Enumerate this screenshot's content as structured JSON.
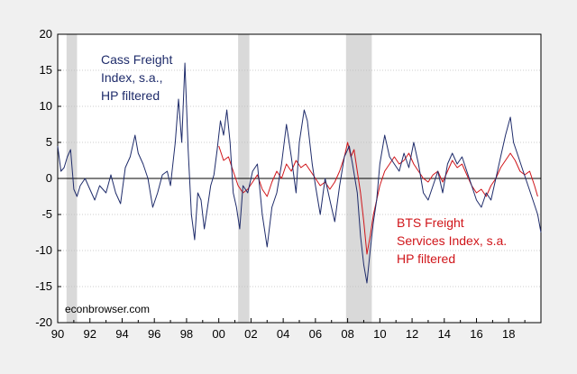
{
  "chart_data": {
    "type": "line",
    "title": "",
    "xlabel": "",
    "ylabel": "",
    "xlim": [
      1990,
      2020
    ],
    "ylim": [
      -20,
      20
    ],
    "grid": true,
    "x_ticks": [
      "90",
      "92",
      "94",
      "96",
      "98",
      "00",
      "02",
      "04",
      "06",
      "08",
      "10",
      "12",
      "14",
      "16",
      "18"
    ],
    "y_ticks": [
      "20",
      "15",
      "10",
      "5",
      "0",
      "-5",
      "-10",
      "-15",
      "-20"
    ],
    "recessions": [
      [
        1990.55,
        1991.2
      ],
      [
        2001.2,
        2001.9
      ],
      [
        2007.9,
        2009.5
      ]
    ],
    "colors": {
      "cass": "#1f2c6b",
      "bts": "#d0151a",
      "recession": "#d9d9d9",
      "background": "#f0f0f0",
      "plot": "#ffffff"
    },
    "annotations": {
      "cass_label": [
        "Cass Freight",
        "Index, s.a.,",
        "HP filtered"
      ],
      "bts_label": [
        "BTS Freight",
        "Services Index, s.a.",
        "HP filtered"
      ],
      "credit": "econbrowser.com"
    },
    "series": [
      {
        "key": "cass",
        "values": [
          [
            1990.0,
            4.5
          ],
          [
            1990.2,
            1.0
          ],
          [
            1990.4,
            1.5
          ],
          [
            1990.6,
            3.0
          ],
          [
            1990.8,
            4.0
          ],
          [
            1991.0,
            -1.5
          ],
          [
            1991.2,
            -2.5
          ],
          [
            1991.4,
            -1.0
          ],
          [
            1991.7,
            0.0
          ],
          [
            1992.0,
            -1.5
          ],
          [
            1992.3,
            -3.0
          ],
          [
            1992.6,
            -1.0
          ],
          [
            1993.0,
            -2.0
          ],
          [
            1993.3,
            0.5
          ],
          [
            1993.6,
            -2.0
          ],
          [
            1993.9,
            -3.5
          ],
          [
            1994.2,
            1.5
          ],
          [
            1994.5,
            3.0
          ],
          [
            1994.8,
            6.0
          ],
          [
            1995.0,
            3.5
          ],
          [
            1995.3,
            2.0
          ],
          [
            1995.6,
            0.0
          ],
          [
            1995.9,
            -4.0
          ],
          [
            1996.2,
            -2.0
          ],
          [
            1996.5,
            0.5
          ],
          [
            1996.8,
            1.0
          ],
          [
            1997.0,
            -1.0
          ],
          [
            1997.3,
            5.0
          ],
          [
            1997.5,
            11.0
          ],
          [
            1997.7,
            5.0
          ],
          [
            1997.9,
            16.0
          ],
          [
            1998.1,
            4.0
          ],
          [
            1998.3,
            -5.0
          ],
          [
            1998.5,
            -8.5
          ],
          [
            1998.7,
            -2.0
          ],
          [
            1998.9,
            -3.0
          ],
          [
            1999.1,
            -7.0
          ],
          [
            1999.3,
            -4.0
          ],
          [
            1999.5,
            -1.0
          ],
          [
            1999.7,
            0.5
          ],
          [
            1999.9,
            4.0
          ],
          [
            2000.1,
            8.0
          ],
          [
            2000.3,
            6.0
          ],
          [
            2000.5,
            9.5
          ],
          [
            2000.7,
            5.0
          ],
          [
            2000.9,
            -2.0
          ],
          [
            2001.1,
            -4.0
          ],
          [
            2001.3,
            -7.0
          ],
          [
            2001.5,
            -1.0
          ],
          [
            2001.8,
            -2.0
          ],
          [
            2002.1,
            1.0
          ],
          [
            2002.4,
            2.0
          ],
          [
            2002.7,
            -5.0
          ],
          [
            2003.0,
            -9.5
          ],
          [
            2003.3,
            -4.0
          ],
          [
            2003.6,
            -2.0
          ],
          [
            2003.9,
            2.0
          ],
          [
            2004.2,
            7.5
          ],
          [
            2004.5,
            3.0
          ],
          [
            2004.8,
            -2.0
          ],
          [
            2005.0,
            5.0
          ],
          [
            2005.3,
            9.5
          ],
          [
            2005.5,
            8.0
          ],
          [
            2005.8,
            2.0
          ],
          [
            2006.0,
            -1.0
          ],
          [
            2006.3,
            -5.0
          ],
          [
            2006.6,
            0.0
          ],
          [
            2006.9,
            -3.0
          ],
          [
            2007.2,
            -6.0
          ],
          [
            2007.5,
            -1.0
          ],
          [
            2007.8,
            3.0
          ],
          [
            2008.1,
            4.5
          ],
          [
            2008.3,
            2.0
          ],
          [
            2008.6,
            -2.0
          ],
          [
            2008.8,
            -8.0
          ],
          [
            2009.0,
            -12.0
          ],
          [
            2009.2,
            -14.5
          ],
          [
            2009.4,
            -10.0
          ],
          [
            2009.6,
            -6.0
          ],
          [
            2009.8,
            -3.0
          ],
          [
            2010.0,
            2.0
          ],
          [
            2010.3,
            6.0
          ],
          [
            2010.6,
            3.0
          ],
          [
            2010.9,
            2.0
          ],
          [
            2011.2,
            1.0
          ],
          [
            2011.5,
            3.5
          ],
          [
            2011.8,
            1.5
          ],
          [
            2012.1,
            5.0
          ],
          [
            2012.4,
            2.0
          ],
          [
            2012.7,
            -2.0
          ],
          [
            2013.0,
            -3.0
          ],
          [
            2013.3,
            -1.0
          ],
          [
            2013.6,
            1.0
          ],
          [
            2013.9,
            -2.0
          ],
          [
            2014.2,
            2.0
          ],
          [
            2014.5,
            3.5
          ],
          [
            2014.8,
            2.0
          ],
          [
            2015.1,
            3.0
          ],
          [
            2015.4,
            1.0
          ],
          [
            2015.7,
            -1.0
          ],
          [
            2016.0,
            -3.0
          ],
          [
            2016.3,
            -4.0
          ],
          [
            2016.6,
            -2.0
          ],
          [
            2016.9,
            -3.0
          ],
          [
            2017.2,
            0.0
          ],
          [
            2017.5,
            3.0
          ],
          [
            2017.8,
            6.0
          ],
          [
            2018.1,
            8.5
          ],
          [
            2018.3,
            5.0
          ],
          [
            2018.6,
            3.0
          ],
          [
            2018.9,
            1.0
          ],
          [
            2019.2,
            -1.0
          ],
          [
            2019.5,
            -3.0
          ],
          [
            2019.8,
            -5.0
          ],
          [
            2020.0,
            -7.5
          ]
        ]
      },
      {
        "key": "bts",
        "values": [
          [
            2000.0,
            4.5
          ],
          [
            2000.3,
            2.5
          ],
          [
            2000.6,
            3.0
          ],
          [
            2000.9,
            1.0
          ],
          [
            2001.2,
            -1.0
          ],
          [
            2001.5,
            -2.0
          ],
          [
            2001.8,
            -1.5
          ],
          [
            2002.1,
            -0.5
          ],
          [
            2002.4,
            0.5
          ],
          [
            2002.7,
            -1.5
          ],
          [
            2003.0,
            -2.5
          ],
          [
            2003.3,
            -0.5
          ],
          [
            2003.6,
            1.0
          ],
          [
            2003.9,
            0.0
          ],
          [
            2004.2,
            2.0
          ],
          [
            2004.5,
            1.0
          ],
          [
            2004.8,
            2.5
          ],
          [
            2005.1,
            1.5
          ],
          [
            2005.4,
            2.0
          ],
          [
            2005.7,
            1.0
          ],
          [
            2006.0,
            0.0
          ],
          [
            2006.3,
            -1.0
          ],
          [
            2006.6,
            -0.5
          ],
          [
            2006.9,
            -1.5
          ],
          [
            2007.2,
            -0.5
          ],
          [
            2007.5,
            1.0
          ],
          [
            2007.8,
            3.0
          ],
          [
            2008.0,
            5.0
          ],
          [
            2008.2,
            3.0
          ],
          [
            2008.4,
            4.0
          ],
          [
            2008.6,
            1.0
          ],
          [
            2008.8,
            -2.0
          ],
          [
            2009.0,
            -6.0
          ],
          [
            2009.2,
            -10.5
          ],
          [
            2009.4,
            -8.0
          ],
          [
            2009.6,
            -5.0
          ],
          [
            2009.8,
            -3.0
          ],
          [
            2010.0,
            -1.0
          ],
          [
            2010.3,
            1.0
          ],
          [
            2010.6,
            2.0
          ],
          [
            2010.9,
            3.0
          ],
          [
            2011.2,
            2.0
          ],
          [
            2011.5,
            2.5
          ],
          [
            2011.8,
            3.5
          ],
          [
            2012.1,
            2.0
          ],
          [
            2012.4,
            1.0
          ],
          [
            2012.7,
            0.0
          ],
          [
            2013.0,
            -0.5
          ],
          [
            2013.3,
            0.5
          ],
          [
            2013.6,
            1.0
          ],
          [
            2013.9,
            -0.5
          ],
          [
            2014.2,
            1.0
          ],
          [
            2014.5,
            2.5
          ],
          [
            2014.8,
            1.5
          ],
          [
            2015.1,
            2.0
          ],
          [
            2015.4,
            0.5
          ],
          [
            2015.7,
            -1.0
          ],
          [
            2016.0,
            -2.0
          ],
          [
            2016.3,
            -1.5
          ],
          [
            2016.6,
            -2.5
          ],
          [
            2016.9,
            -1.0
          ],
          [
            2017.2,
            0.0
          ],
          [
            2017.5,
            1.5
          ],
          [
            2017.8,
            2.5
          ],
          [
            2018.1,
            3.5
          ],
          [
            2018.4,
            2.5
          ],
          [
            2018.7,
            1.0
          ],
          [
            2019.0,
            0.5
          ],
          [
            2019.3,
            1.0
          ],
          [
            2019.6,
            -1.0
          ],
          [
            2019.8,
            -2.5
          ]
        ]
      }
    ]
  }
}
